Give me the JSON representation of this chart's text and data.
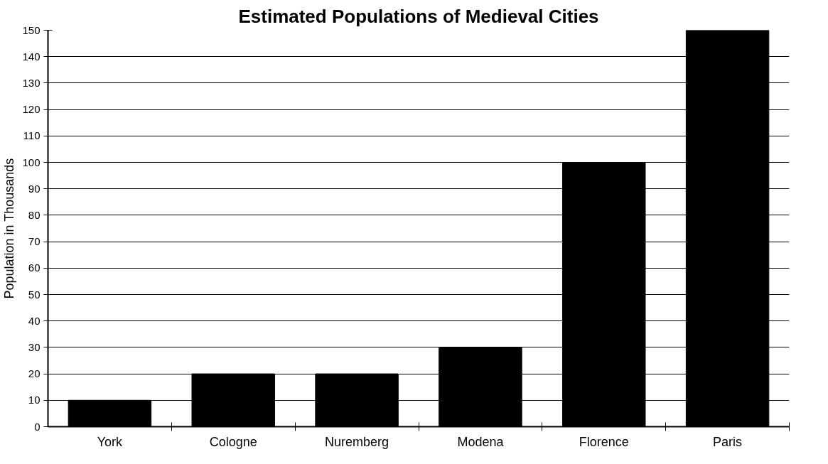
{
  "chart_data": {
    "type": "bar",
    "title": "Estimated Populations of Medieval Cities",
    "ylabel": "Population in Thousands",
    "categories": [
      "York",
      "Cologne",
      "Nuremberg",
      "Modena",
      "Florence",
      "Paris"
    ],
    "values": [
      10,
      20,
      20,
      30,
      100,
      150
    ],
    "color": "#000000",
    "ylim": [
      0,
      150
    ],
    "yticks": [
      0,
      10,
      20,
      30,
      40,
      50,
      60,
      70,
      80,
      90,
      100,
      110,
      120,
      130,
      140,
      150
    ],
    "grid": "y"
  }
}
